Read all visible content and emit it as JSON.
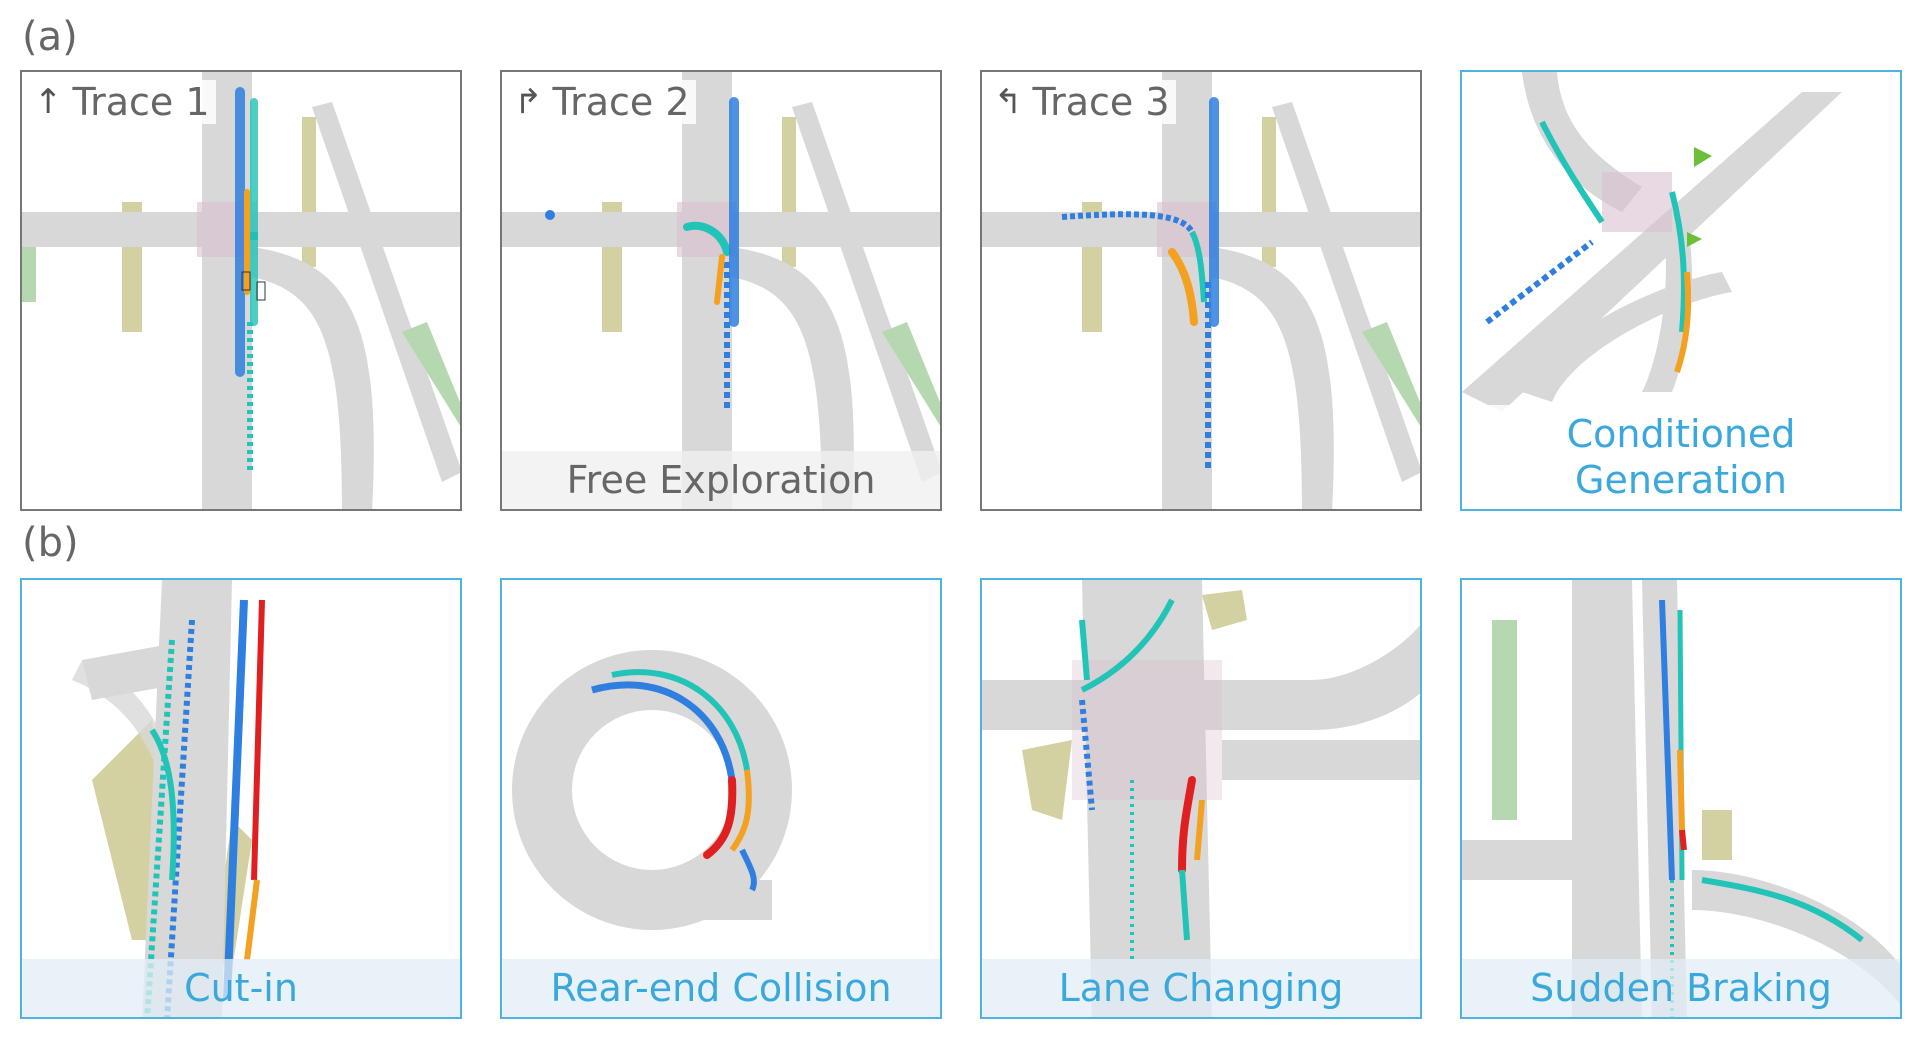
{
  "section_a": {
    "label": "(a)"
  },
  "section_b": {
    "label": "(b)"
  },
  "panels_a": [
    {
      "label": "Trace 1",
      "icon": "arrow-up-icon",
      "caption": ""
    },
    {
      "label": "Trace 2",
      "icon": "turn-right-icon",
      "caption": "Free Exploration"
    },
    {
      "label": "Trace 3",
      "icon": "turn-left-icon",
      "caption": ""
    },
    {
      "label": "",
      "icon": "",
      "caption_line1": "Conditioned",
      "caption_line2": "Generation"
    }
  ],
  "panels_b": [
    {
      "caption": "Cut-in"
    },
    {
      "caption": "Rear-end Collision"
    },
    {
      "caption": "Lane Changing"
    },
    {
      "caption": "Sudden Braking"
    }
  ],
  "colors": {
    "road": "#d8d8d8",
    "crosswalk": "#d9bfd0",
    "curb": "#c8c48a",
    "grass": "#b6d8b0",
    "traj_blue": "#2f7fe0",
    "traj_cyan": "#22c4b8",
    "traj_orange": "#f4a020",
    "traj_red": "#e02020",
    "frame_gray": "#777777",
    "frame_blue": "#4fb3df"
  }
}
